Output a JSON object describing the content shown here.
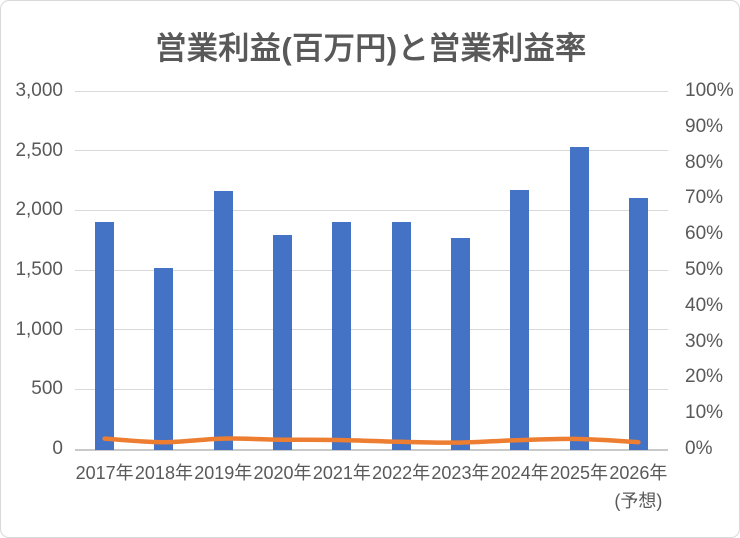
{
  "title": "営業利益(百万円)と営業利益率",
  "colors": {
    "bar": "#4472C4",
    "line": "#ED7D31",
    "gridline": "#D9D9D9",
    "axis_line": "#C9C9C9",
    "text": "#595959",
    "border": "#D9D9D9",
    "background": "#FFFFFF"
  },
  "chart_data": {
    "type": "bar",
    "title": "営業利益(百万円)と営業利益率",
    "categories": [
      "2017年",
      "2018年",
      "2019年",
      "2020年",
      "2021年",
      "2022年",
      "2023年",
      "2024年",
      "2025年",
      "2026年"
    ],
    "last_category_note": "(予想)",
    "series": [
      {
        "name": "営業利益(百万円)",
        "type": "bar",
        "axis": "left",
        "values": [
          1900,
          1520,
          2160,
          1790,
          1900,
          1900,
          1770,
          2170,
          2530,
          2100
        ]
      },
      {
        "name": "営業利益率",
        "type": "line",
        "axis": "right",
        "values": [
          2.9,
          1.9,
          2.9,
          2.6,
          2.5,
          2.0,
          1.8,
          2.5,
          2.8,
          1.9
        ]
      }
    ],
    "left_axis": {
      "min": 0,
      "max": 3000,
      "tick_labels": [
        "3,000",
        "2,500",
        "2,000",
        "1,500",
        "1,000",
        "500",
        "0"
      ]
    },
    "right_axis": {
      "min": 0,
      "max": 100,
      "tick_labels": [
        "100%",
        "90%",
        "80%",
        "70%",
        "60%",
        "50%",
        "40%",
        "30%",
        "20%",
        "10%",
        "0%"
      ]
    },
    "grid": true,
    "legend": false
  }
}
